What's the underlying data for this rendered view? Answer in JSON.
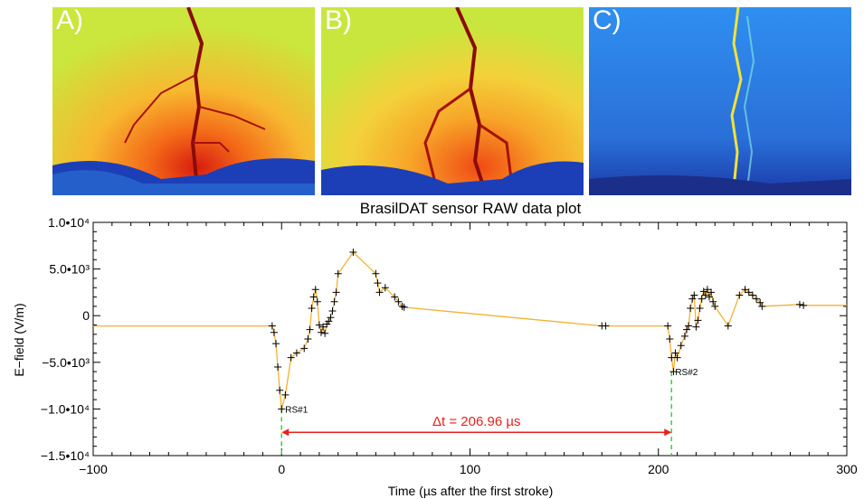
{
  "panels": [
    {
      "label": "A)",
      "colormap": "false-color"
    },
    {
      "label": "B)",
      "colormap": "false-color"
    },
    {
      "label": "C)",
      "colormap": "blue"
    }
  ],
  "chart_data": {
    "type": "line",
    "title": "BrasilDAT sensor RAW data plot",
    "xlabel": "Time (µs after the first stroke)",
    "ylabel": "E−field (V/m)",
    "xlim": [
      -100,
      300
    ],
    "ylim": [
      -15000,
      10000
    ],
    "xticks": [
      -100,
      0,
      100,
      200,
      300
    ],
    "xtick_labels": [
      "−100",
      "0",
      "100",
      "200",
      "300"
    ],
    "yticks": [
      10000,
      5000,
      0,
      -5000,
      -10000,
      -15000
    ],
    "ytick_labels": [
      "1.0•10⁴",
      "5.0•10³",
      "0",
      "−5.0•10³",
      "−1.0•10⁴",
      "−1.5•10⁴"
    ],
    "grid": false,
    "line_color": "#f2b233",
    "marker": "+",
    "series": [
      {
        "x": [
          -100,
          -5,
          -4,
          -3,
          -2,
          -1,
          0,
          2,
          5,
          8,
          12,
          14,
          15,
          16,
          17,
          18,
          19,
          20,
          21,
          22,
          23,
          24,
          25,
          26,
          27,
          28,
          29,
          30,
          38,
          50,
          51,
          52,
          55,
          60,
          62,
          64,
          65,
          170,
          172,
          205,
          206,
          207,
          208,
          209,
          210,
          212,
          214,
          215,
          216,
          217,
          218,
          219,
          220,
          221,
          222,
          223,
          224,
          225,
          226,
          227,
          228,
          229,
          230,
          237,
          243,
          246,
          248,
          250,
          252,
          254,
          255,
          275,
          277,
          300
        ],
        "y": [
          -1100,
          -1100,
          -1800,
          -3000,
          -5500,
          -8000,
          -10000,
          -8500,
          -4500,
          -4000,
          -3500,
          -2500,
          -1500,
          800,
          2000,
          2800,
          1500,
          -1000,
          -1800,
          -1200,
          -1900,
          -900,
          -600,
          -200,
          500,
          1500,
          2500,
          4500,
          6800,
          4500,
          3500,
          2500,
          3000,
          2000,
          1500,
          1000,
          900,
          -1100,
          -1100,
          -1100,
          -2500,
          -4500,
          -6000,
          -4000,
          -4500,
          -3200,
          -2200,
          -1500,
          -1100,
          800,
          1800,
          2200,
          -1200,
          -500,
          800,
          1800,
          2600,
          2200,
          2800,
          2000,
          2500,
          1500,
          1000,
          -1100,
          2200,
          2800,
          2500,
          2200,
          1800,
          1400,
          1000,
          1200,
          1100,
          1100
        ]
      }
    ],
    "annotations": [
      {
        "text": "RS#1",
        "x": 0,
        "y": -10000
      },
      {
        "text": "RS#2",
        "x": 207,
        "y": -6000
      }
    ],
    "markers_vertical": [
      0,
      206.96
    ],
    "interval": {
      "text": "Δt = 206.96 µs",
      "from": 0,
      "to": 206.96,
      "y": -12500,
      "color": "#e8211b"
    },
    "vline_color": "#39d33a"
  }
}
